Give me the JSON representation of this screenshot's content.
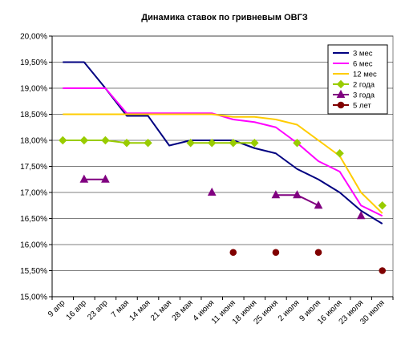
{
  "chart_data": {
    "type": "line",
    "title": "Динамика ставок по гривневым ОВГЗ",
    "xlabel": "",
    "ylabel": "",
    "ylim": [
      15.0,
      20.0
    ],
    "y_ticks": [
      "15,00%",
      "15,50%",
      "16,00%",
      "16,50%",
      "17,00%",
      "17,50%",
      "18,00%",
      "18,50%",
      "19,00%",
      "19,50%",
      "20,00%"
    ],
    "categories": [
      "9 апр",
      "16 апр",
      "23 апр",
      "7 мая",
      "14 мая",
      "21 мая",
      "28 мая",
      "4 июня",
      "11 июня",
      "18 июня",
      "25 июня",
      "2 июля",
      "9 июля",
      "16 июля",
      "23 июля",
      "30 июля"
    ],
    "grid": true,
    "legend_position": "top-right",
    "series": [
      {
        "name": "3 мес",
        "color": "#000080",
        "marker": "none",
        "values": [
          19.5,
          19.5,
          19.0,
          18.47,
          18.47,
          17.9,
          18.0,
          18.0,
          18.0,
          17.85,
          17.75,
          17.45,
          17.25,
          17.0,
          16.65,
          16.4
        ]
      },
      {
        "name": "6 мес",
        "color": "#ff00ff",
        "marker": "none",
        "values": [
          19.0,
          19.0,
          19.0,
          18.52,
          18.52,
          18.52,
          18.52,
          18.52,
          18.4,
          18.35,
          18.25,
          17.95,
          17.6,
          17.4,
          16.75,
          16.55
        ]
      },
      {
        "name": "12 мес",
        "color": "#ffcc00",
        "marker": "none",
        "values": [
          18.5,
          18.5,
          18.5,
          18.5,
          18.5,
          18.5,
          18.5,
          18.5,
          18.45,
          18.45,
          18.4,
          18.3,
          18.0,
          17.7,
          17.0,
          16.6
        ]
      },
      {
        "name": "2 года",
        "color": "#99cc00",
        "marker": "diamond",
        "values": [
          18.0,
          18.0,
          18.0,
          17.95,
          17.95,
          null,
          17.95,
          17.95,
          17.95,
          17.95,
          null,
          17.95,
          null,
          17.75,
          null,
          16.75
        ]
      },
      {
        "name": "3 года",
        "color": "#800080",
        "marker": "triangle",
        "values": [
          null,
          17.25,
          17.25,
          null,
          null,
          null,
          null,
          17.0,
          null,
          null,
          16.95,
          16.95,
          16.75,
          null,
          16.55,
          null
        ]
      },
      {
        "name": "5 лет",
        "color": "#800000",
        "marker": "circle",
        "values": [
          null,
          null,
          null,
          null,
          null,
          null,
          null,
          null,
          15.85,
          null,
          15.85,
          null,
          15.85,
          null,
          null,
          15.5
        ]
      }
    ]
  }
}
